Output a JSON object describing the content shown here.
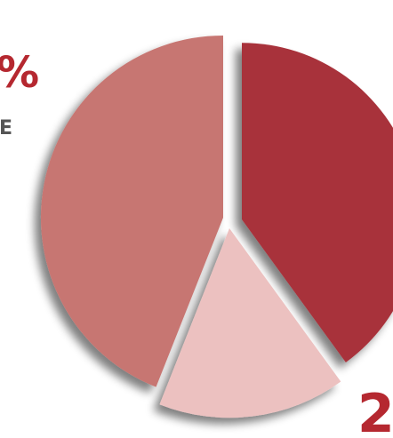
{
  "chart_data": {
    "type": "pie",
    "slices": [
      {
        "value": 40,
        "color": "#a8313a",
        "label": ""
      },
      {
        "value": 16,
        "color": "#ecc1c0",
        "label": ""
      },
      {
        "value": 44,
        "color": "#c77672",
        "label": ""
      }
    ],
    "callouts": {
      "left_percent_fragment": "%",
      "left_caption_fragment": "E",
      "bottom_right_fragment": "2"
    },
    "colors": {
      "callout_text": "#b52830",
      "caption_text": "#555555",
      "shadow": "#000000"
    }
  }
}
